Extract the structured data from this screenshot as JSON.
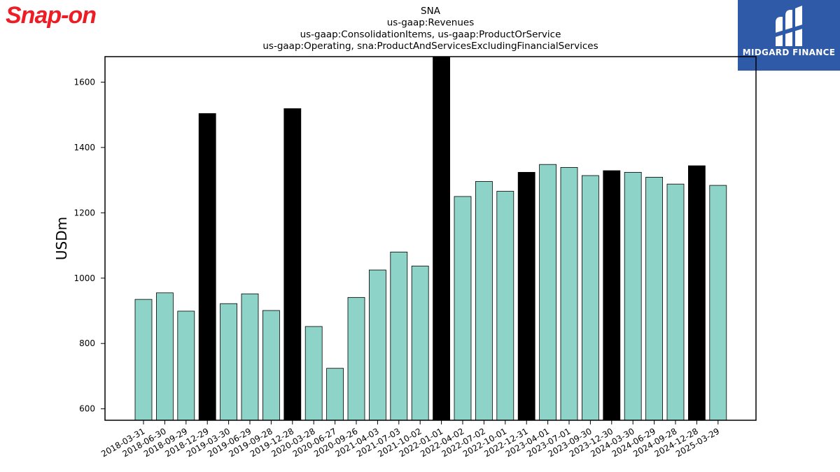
{
  "logos": {
    "left": "Snap-on",
    "right": "MIDGARD FINANCE"
  },
  "colors": {
    "quarter_bar": "#8dd3c7",
    "year_end_bar": "#000000",
    "snapon_red": "#ee1c25",
    "midgard_blue": "#2f5aa8"
  },
  "chart_data": {
    "type": "bar",
    "title_lines": [
      "SNA",
      "us-gaap:Revenues",
      "us-gaap:ConsolidationItems, us-gaap:ProductOrService",
      "us-gaap:Operating, sna:ProductAndServicesExcludingFinancialServices"
    ],
    "xlabel": "",
    "ylabel": "USDm",
    "ylim": [
      565,
      1678
    ],
    "yticks": [
      600,
      800,
      1000,
      1200,
      1400,
      1600
    ],
    "grid": false,
    "categories": [
      "2018-03-31",
      "2018-06-30",
      "2018-09-29",
      "2018-12-29",
      "2019-03-30",
      "2019-06-29",
      "2019-09-28",
      "2019-12-28",
      "2020-03-28",
      "2020-06-27",
      "2020-09-26",
      "2021-04-03",
      "2021-07-03",
      "2021-10-02",
      "2022-01-01",
      "2022-04-02",
      "2022-07-02",
      "2022-10-01",
      "2022-12-31",
      "2023-04-01",
      "2023-07-01",
      "2023-09-30",
      "2023-12-30",
      "2024-03-30",
      "2024-06-29",
      "2024-09-28",
      "2024-12-28",
      "2025-03-29"
    ],
    "values": [
      935,
      955,
      899,
      1504,
      922,
      952,
      901,
      1519,
      852,
      724,
      941,
      1025,
      1080,
      1037,
      1680,
      1250,
      1296,
      1266,
      1324,
      1348,
      1339,
      1314,
      1329,
      1324,
      1309,
      1288,
      1344,
      1284
    ],
    "highlighted": [
      false,
      false,
      false,
      true,
      false,
      false,
      false,
      true,
      false,
      false,
      false,
      false,
      false,
      false,
      true,
      false,
      false,
      false,
      true,
      false,
      false,
      false,
      true,
      false,
      false,
      false,
      true,
      false
    ]
  }
}
